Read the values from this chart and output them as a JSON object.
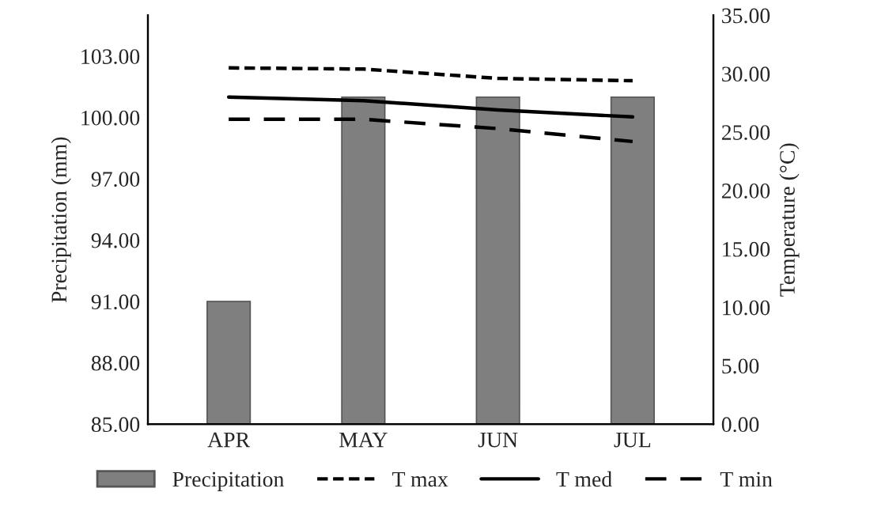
{
  "chart_data": {
    "type": "bar",
    "categories": [
      "APR",
      "MAY",
      "JUN",
      "JUL"
    ],
    "series": [
      {
        "name": "Precipitation",
        "color": "#7f7f7f",
        "values": [
          91.0,
          101.0,
          101.0,
          101.0
        ]
      },
      {
        "name": "T max",
        "type": "line",
        "axis": "y2",
        "color": "#000000",
        "line_style": "dotted",
        "values": [
          30.5,
          30.4,
          29.6,
          29.4
        ]
      },
      {
        "name": "T med",
        "type": "line",
        "axis": "y2",
        "color": "#000000",
        "line_style": "solid",
        "values": [
          28.0,
          27.7,
          26.9,
          26.3
        ]
      },
      {
        "name": "T min",
        "type": "line",
        "axis": "y2",
        "color": "#000000",
        "line_style": "dashed",
        "values": [
          26.1,
          26.1,
          25.3,
          24.2
        ]
      }
    ],
    "ylabel": "Precipitation (mm)",
    "y2label": "Temperature (°C)",
    "ylim": [
      85,
      105
    ],
    "yticks": [
      {
        "value": 85,
        "label": "85.00"
      },
      {
        "value": 88,
        "label": "88.00"
      },
      {
        "value": 91,
        "label": "91.00"
      },
      {
        "value": 94,
        "label": "94.00"
      },
      {
        "value": 97,
        "label": "97.00"
      },
      {
        "value": 100,
        "label": "100.00"
      },
      {
        "value": 103,
        "label": "103.00"
      }
    ],
    "y2lim": [
      0,
      35
    ],
    "y2ticks": [
      {
        "value": 0,
        "label": "0.00"
      },
      {
        "value": 5,
        "label": "5.00"
      },
      {
        "value": 10,
        "label": "10.00"
      },
      {
        "value": 15,
        "label": "15.00"
      },
      {
        "value": 20,
        "label": "20.00"
      },
      {
        "value": 25,
        "label": "25.00"
      },
      {
        "value": 30,
        "label": "30.00"
      },
      {
        "value": 35,
        "label": "35.00"
      }
    ],
    "grid": false,
    "legend": "bottom"
  }
}
